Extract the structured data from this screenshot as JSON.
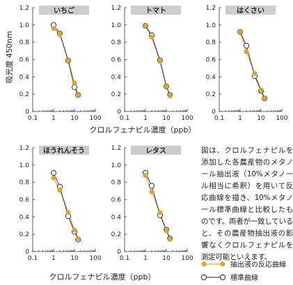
{
  "y_axis_label": "吸光度 450nm",
  "x_axis_label": "クロルフェナピル濃度（ppb）",
  "note": "図は、クロルフェナピルを添加した各農産物のメタノール抽出液（10%メタノール相当に希釈）を用いて反応曲線を描き、10%メタノール標準曲線と比較したものです。両者が一致していると、その農産物抽出液の影響なくクロルフェナピルを測定可能といえます。",
  "legend": [
    {
      "label": "抽出液の反応曲線"
    },
    {
      "label": "標準曲線"
    }
  ],
  "colors": {
    "extract": "#d9a440",
    "standard": "#222222",
    "title_bar": "#cccccc"
  },
  "chart_data": [
    {
      "type": "line",
      "title": "いちご",
      "x_scale": "log",
      "xlim": [
        0.1,
        100
      ],
      "ylim": [
        0,
        1.2
      ],
      "xticks": [
        "0.1",
        "1",
        "10",
        "100"
      ],
      "yticks": [
        "0",
        "0.2",
        "0.4",
        "0.6",
        "0.8",
        "1.0",
        "1.2"
      ],
      "x": [
        1,
        2,
        5,
        10,
        15
      ],
      "series": [
        {
          "values": [
            0.96,
            0.89,
            0.59,
            0.33,
            0.19
          ]
        },
        {
          "values": [
            1.0,
            0.9,
            0.59,
            0.28,
            0.19
          ]
        }
      ]
    },
    {
      "type": "line",
      "title": "トマト",
      "x_scale": "log",
      "xlim": [
        0.1,
        100
      ],
      "ylim": [
        0,
        1.2
      ],
      "xticks": [
        "0.1",
        "1",
        "10",
        "100"
      ],
      "yticks": [
        "0",
        "0.2",
        "0.4",
        "0.6",
        "0.8",
        "1.0",
        "1.2"
      ],
      "x": [
        1,
        2,
        5,
        10,
        15
      ],
      "series": [
        {
          "values": [
            0.99,
            0.86,
            0.58,
            0.29,
            0.18
          ]
        },
        {
          "values": [
            0.99,
            0.88,
            0.59,
            0.29,
            0.19
          ]
        }
      ]
    },
    {
      "type": "line",
      "title": "はくさい",
      "x_scale": "log",
      "xlim": [
        0.1,
        100
      ],
      "ylim": [
        0,
        1.2
      ],
      "xticks": [
        "0.1",
        "1",
        "10",
        "100"
      ],
      "yticks": [
        "0",
        "0.2",
        "0.4",
        "0.6",
        "0.8",
        "1.0",
        "1.2"
      ],
      "x": [
        1,
        2,
        5,
        10,
        15
      ],
      "series": [
        {
          "values": [
            0.92,
            0.69,
            0.44,
            0.25,
            0.15
          ]
        },
        {
          "values": [
            0.92,
            0.76,
            0.41,
            0.24,
            0.15
          ]
        }
      ]
    },
    {
      "type": "line",
      "title": "ほうれんそう",
      "x_scale": "log",
      "xlim": [
        0.1,
        100
      ],
      "ylim": [
        0,
        1.2
      ],
      "xticks": [
        "0.1",
        "1",
        "10",
        "100"
      ],
      "yticks": [
        "0",
        "0.2",
        "0.4",
        "0.6",
        "0.8",
        "1.0",
        "1.2"
      ],
      "x": [
        1,
        2,
        5,
        10,
        15
      ],
      "series": [
        {
          "values": [
            0.85,
            0.71,
            0.45,
            0.25,
            0.15
          ]
        },
        {
          "values": [
            0.91,
            0.75,
            0.41,
            0.23,
            0.14
          ]
        }
      ]
    },
    {
      "type": "line",
      "title": "レタス",
      "x_scale": "log",
      "xlim": [
        0.1,
        100
      ],
      "ylim": [
        0,
        1.2
      ],
      "xticks": [
        "0.1",
        "1",
        "10",
        "100"
      ],
      "yticks": [
        "0",
        "0.2",
        "0.4",
        "0.6",
        "0.8",
        "1.0",
        "1.2"
      ],
      "x": [
        1,
        2,
        5,
        10,
        15
      ],
      "series": [
        {
          "values": [
            0.88,
            0.69,
            0.45,
            0.24,
            0.14
          ]
        },
        {
          "values": [
            0.91,
            0.76,
            0.42,
            0.25,
            0.15
          ]
        }
      ]
    }
  ]
}
